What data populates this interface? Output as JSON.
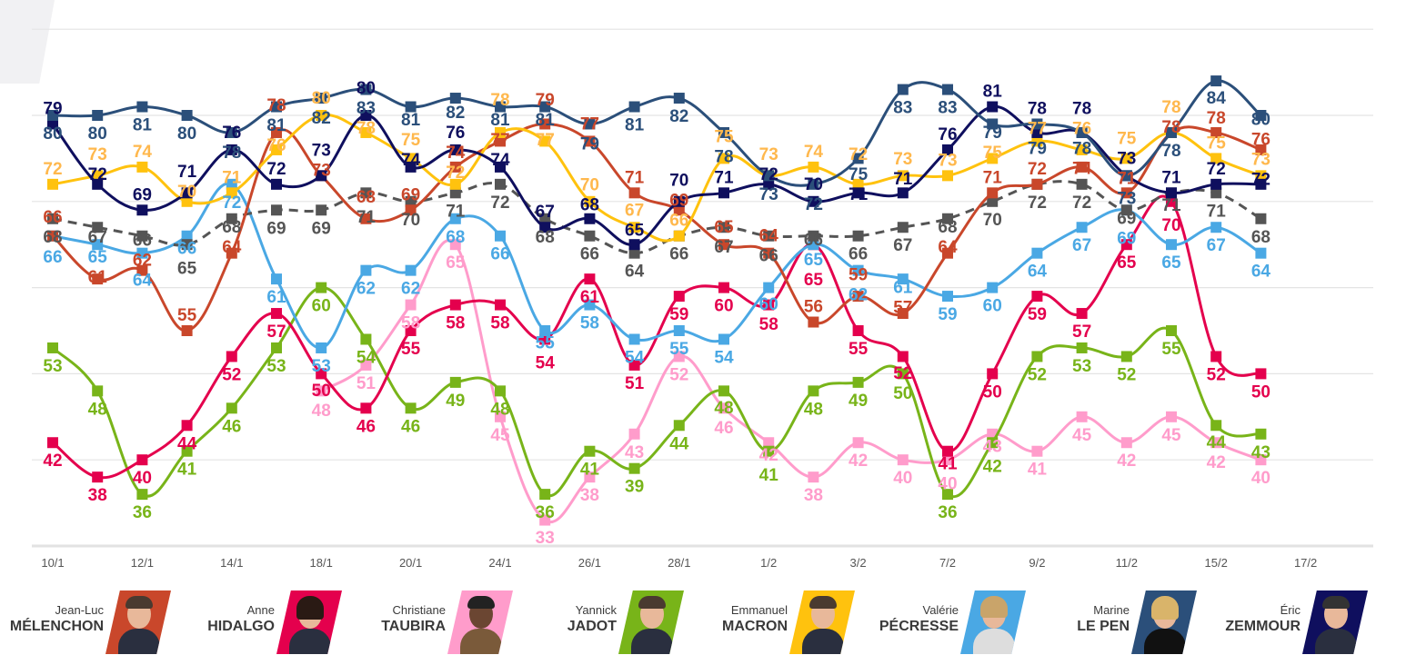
{
  "chart_data": {
    "type": "line",
    "title": "",
    "xlabel": "",
    "ylabel": "",
    "ylim": [
      30,
      90
    ],
    "grid": true,
    "legend_position": "bottom",
    "x_tick_labels": [
      "10/1",
      "12/1",
      "14/1",
      "18/1",
      "20/1",
      "24/1",
      "26/1",
      "28/1",
      "1/2",
      "3/2",
      "7/2",
      "9/2",
      "11/2",
      "15/2",
      "17/2"
    ],
    "series": [
      {
        "key": "lepen",
        "name": "Marine LE PEN",
        "color": "#2b4f7a",
        "dashed": false,
        "label_pos": "below",
        "values": [
          80,
          80,
          81,
          80,
          78,
          81,
          82,
          83,
          81,
          82,
          81,
          81,
          79,
          81,
          82,
          78,
          73,
          72,
          75,
          83,
          83,
          79,
          79,
          78,
          73,
          78,
          84,
          80
        ]
      },
      {
        "key": "zemmour",
        "name": "Éric ZEMMOUR",
        "color": "#0f0f5e",
        "dashed": false,
        "label_pos": "above",
        "values": [
          79,
          72,
          69,
          71,
          76,
          72,
          73,
          80,
          74,
          76,
          74,
          67,
          68,
          65,
          70,
          71,
          72,
          70,
          71,
          71,
          76,
          81,
          78,
          78,
          73,
          71,
          72,
          72
        ]
      },
      {
        "key": "macron",
        "name": "Emmanuel MACRON",
        "color": "#ffc20e",
        "label_color": "#ffb84d",
        "dashed": false,
        "label_pos": "above",
        "values": [
          72,
          73,
          74,
          70,
          71,
          76,
          80,
          78,
          75,
          72,
          78,
          77,
          70,
          67,
          66,
          75,
          73,
          74,
          72,
          73,
          73,
          75,
          77,
          76,
          75,
          78,
          75,
          73
        ]
      },
      {
        "key": "melenchon",
        "name": "Jean-Luc MÉLENCHON",
        "color": "#c9472b",
        "dashed": false,
        "label_pos": "above",
        "values": [
          66,
          61,
          62,
          55,
          64,
          78,
          73,
          68,
          69,
          74,
          77,
          79,
          77,
          71,
          69,
          65,
          64,
          56,
          59,
          57,
          64,
          71,
          72,
          74,
          71,
          78,
          78,
          76
        ]
      },
      {
        "key": "others",
        "color": "#555555",
        "dashed": true,
        "label_pos": "below",
        "values": [
          68,
          67,
          66,
          65,
          68,
          69,
          69,
          71,
          70,
          71,
          72,
          68,
          66,
          64,
          66,
          67,
          66,
          66,
          66,
          67,
          68,
          70,
          72,
          72,
          69,
          71,
          71,
          68
        ]
      },
      {
        "key": "pecresse",
        "name": "Valérie PÉCRESSE",
        "color": "#4aa8e4",
        "dashed": false,
        "label_pos": "below",
        "values": [
          66,
          65,
          64,
          66,
          72,
          61,
          53,
          62,
          62,
          68,
          66,
          55,
          58,
          54,
          55,
          54,
          60,
          65,
          62,
          61,
          59,
          60,
          64,
          67,
          69,
          65,
          67,
          64
        ]
      },
      {
        "key": "hidalgo",
        "name": "Anne HIDALGO",
        "color": "#e4004d",
        "dashed": false,
        "label_pos": "below",
        "values": [
          42,
          38,
          40,
          44,
          52,
          57,
          50,
          46,
          55,
          58,
          58,
          54,
          61,
          51,
          59,
          60,
          58,
          65,
          55,
          52,
          41,
          50,
          59,
          57,
          65,
          70,
          52,
          50
        ]
      },
      {
        "key": "jadot",
        "name": "Yannick JADOT",
        "color": "#78b419",
        "dashed": false,
        "label_pos": "below",
        "values": [
          53,
          48,
          36,
          41,
          46,
          53,
          60,
          54,
          46,
          49,
          48,
          36,
          41,
          39,
          44,
          48,
          41,
          48,
          49,
          50,
          36,
          42,
          52,
          53,
          52,
          55,
          44,
          43
        ]
      },
      {
        "key": "taubira",
        "name": "Christiane TAUBIRA",
        "color": "#ff9ccb",
        "dashed": false,
        "label_pos": "below",
        "values": [
          null,
          null,
          null,
          null,
          null,
          null,
          48,
          51,
          58,
          65,
          45,
          33,
          38,
          43,
          52,
          46,
          42,
          38,
          42,
          40,
          40,
          43,
          41,
          45,
          42,
          45,
          42,
          40
        ]
      }
    ]
  },
  "legend": [
    {
      "first": "Jean-Luc",
      "last": "MÉLENCHON",
      "color": "#c9472b"
    },
    {
      "first": "Anne",
      "last": "HIDALGO",
      "color": "#e4004d"
    },
    {
      "first": "Christiane",
      "last": "TAUBIRA",
      "color": "#ff9ccb"
    },
    {
      "first": "Yannick",
      "last": "JADOT",
      "color": "#78b419"
    },
    {
      "first": "Emmanuel",
      "last": "MACRON",
      "color": "#ffc20e"
    },
    {
      "first": "Valérie",
      "last": "PÉCRESSE",
      "color": "#4aa8e4"
    },
    {
      "first": "Marine",
      "last": "LE PEN",
      "color": "#2b4f7a"
    },
    {
      "first": "Éric",
      "last": "ZEMMOUR",
      "color": "#0f0f5e"
    }
  ]
}
